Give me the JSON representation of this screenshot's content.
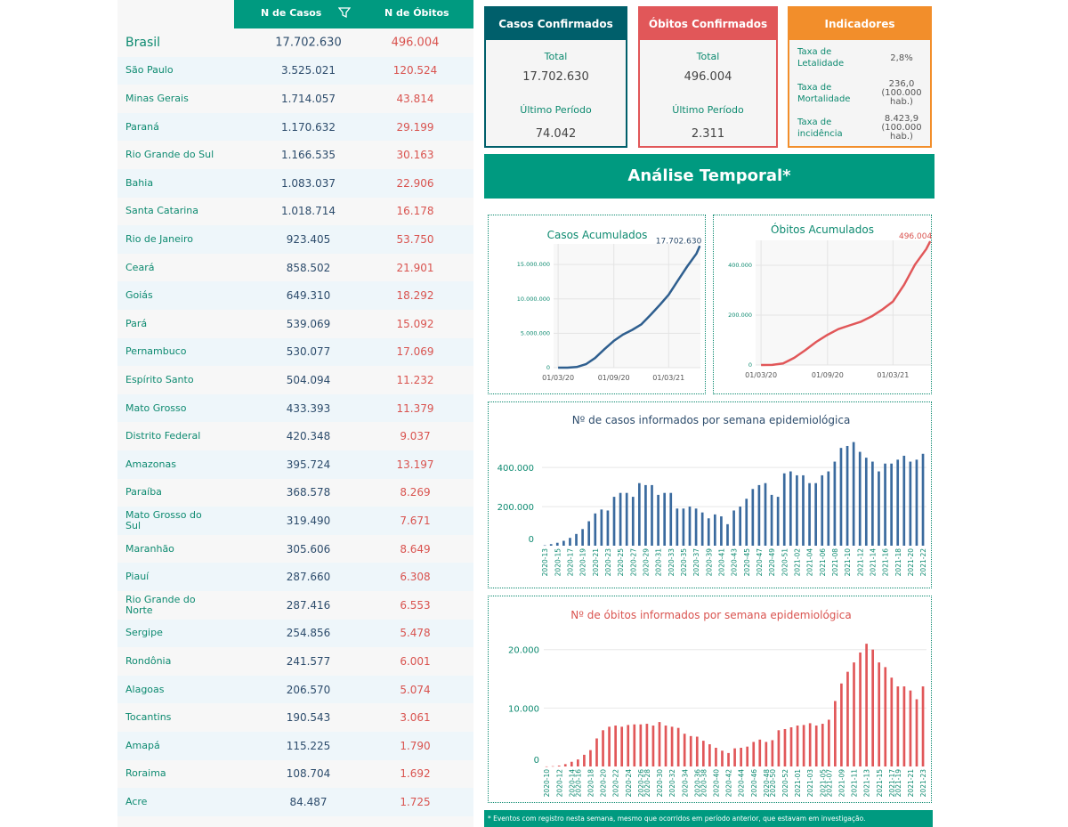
{
  "table": {
    "header": {
      "casos": "N de Casos",
      "obitos": "N de Óbitos"
    },
    "rows": [
      {
        "nome": "Brasil",
        "casos": "17.702.630",
        "obitos": "496.004"
      },
      {
        "nome": "São Paulo",
        "casos": "3.525.021",
        "obitos": "120.524"
      },
      {
        "nome": "Minas Gerais",
        "casos": "1.714.057",
        "obitos": "43.814"
      },
      {
        "nome": "Paraná",
        "casos": "1.170.632",
        "obitos": "29.199"
      },
      {
        "nome": "Rio Grande do Sul",
        "casos": "1.166.535",
        "obitos": "30.163"
      },
      {
        "nome": "Bahia",
        "casos": "1.083.037",
        "obitos": "22.906"
      },
      {
        "nome": "Santa Catarina",
        "casos": "1.018.714",
        "obitos": "16.178"
      },
      {
        "nome": "Rio de Janeiro",
        "casos": "923.405",
        "obitos": "53.750"
      },
      {
        "nome": "Ceará",
        "casos": "858.502",
        "obitos": "21.901"
      },
      {
        "nome": "Goiás",
        "casos": "649.310",
        "obitos": "18.292"
      },
      {
        "nome": "Pará",
        "casos": "539.069",
        "obitos": "15.092"
      },
      {
        "nome": "Pernambuco",
        "casos": "530.077",
        "obitos": "17.069"
      },
      {
        "nome": "Espírito Santo",
        "casos": "504.094",
        "obitos": "11.232"
      },
      {
        "nome": "Mato Grosso",
        "casos": "433.393",
        "obitos": "11.379"
      },
      {
        "nome": "Distrito Federal",
        "casos": "420.348",
        "obitos": "9.037"
      },
      {
        "nome": "Amazonas",
        "casos": "395.724",
        "obitos": "13.197"
      },
      {
        "nome": "Paraíba",
        "casos": "368.578",
        "obitos": "8.269"
      },
      {
        "nome": "Mato Grosso do Sul",
        "casos": "319.490",
        "obitos": "7.671"
      },
      {
        "nome": "Maranhão",
        "casos": "305.606",
        "obitos": "8.649"
      },
      {
        "nome": "Piauí",
        "casos": "287.660",
        "obitos": "6.308"
      },
      {
        "nome": "Rio Grande do Norte",
        "casos": "287.416",
        "obitos": "6.553"
      },
      {
        "nome": "Sergipe",
        "casos": "254.856",
        "obitos": "5.478"
      },
      {
        "nome": "Rondônia",
        "casos": "241.577",
        "obitos": "6.001"
      },
      {
        "nome": "Alagoas",
        "casos": "206.570",
        "obitos": "5.074"
      },
      {
        "nome": "Tocantins",
        "casos": "190.543",
        "obitos": "3.061"
      },
      {
        "nome": "Amapá",
        "casos": "115.225",
        "obitos": "1.790"
      },
      {
        "nome": "Roraima",
        "casos": "108.704",
        "obitos": "1.692"
      },
      {
        "nome": "Acre",
        "casos": "84.487",
        "obitos": "1.725"
      }
    ]
  },
  "cards": {
    "casos": {
      "title": "Casos Confirmados",
      "total_label": "Total",
      "total": "17.702.630",
      "periodo_label": "Último Período",
      "periodo": "74.042"
    },
    "obitos": {
      "title": "Óbitos Confirmados",
      "total_label": "Total",
      "total": "496.004",
      "periodo_label": "Último Período",
      "periodo": "2.311"
    },
    "indicadores": {
      "title": "Indicadores",
      "items": [
        {
          "label": "Taxa de Letalidade",
          "value": "2,8%"
        },
        {
          "label": "Taxa de Mortalidade",
          "value": "236,0 (100.000 hab.)"
        },
        {
          "label": "Taxa de incidência",
          "value": "8.423,9 (100.000 hab.)"
        }
      ]
    }
  },
  "banner": "Análise Temporal*",
  "footnote": "* Eventos com registro nesta semana, mesmo que ocorridos em período anterior, que estavam em investigação.",
  "colors": {
    "teal": "#009a80",
    "navy": "#005f6b",
    "red": "#e15759",
    "orange": "#f28e2b",
    "series_casos": "#3a6a9e",
    "series_obitos": "#e15759"
  },
  "chart_data": [
    {
      "type": "line",
      "title": "Casos Acumulados",
      "x_tick_labels": [
        "01/03/20",
        "01/09/20",
        "01/03/21"
      ],
      "y_tick_labels": [
        "0",
        "5.000.000",
        "10.000.000",
        "15.000.000"
      ],
      "ylim": [
        0,
        18000000
      ],
      "end_label": "17.702.630",
      "series": [
        {
          "x": [
            "2020-03-01",
            "2020-04-01",
            "2020-05-01",
            "2020-06-01",
            "2020-07-01",
            "2020-08-01",
            "2020-09-01",
            "2020-10-01",
            "2020-11-01",
            "2020-12-01",
            "2021-01-01",
            "2021-02-01",
            "2021-03-01",
            "2021-04-01",
            "2021-05-01",
            "2021-06-01",
            "2021-06-12"
          ],
          "y": [
            2,
            6000,
            85000,
            500000,
            1400000,
            2700000,
            3900000,
            4800000,
            5500000,
            6300000,
            7700000,
            9200000,
            10600000,
            12700000,
            14700000,
            16600000,
            17702630
          ]
        }
      ]
    },
    {
      "type": "line",
      "title": "Óbitos Acumulados",
      "x_tick_labels": [
        "01/03/20",
        "01/09/20",
        "01/03/21"
      ],
      "y_tick_labels": [
        "0",
        "200.000",
        "400.000"
      ],
      "ylim": [
        0,
        500000
      ],
      "end_label": "496.004",
      "series": [
        {
          "x": [
            "2020-03-01",
            "2020-04-01",
            "2020-05-01",
            "2020-06-01",
            "2020-07-01",
            "2020-08-01",
            "2020-09-01",
            "2020-10-01",
            "2020-11-01",
            "2020-12-01",
            "2021-01-01",
            "2021-02-01",
            "2021-03-01",
            "2021-04-01",
            "2021-05-01",
            "2021-06-01",
            "2021-06-12"
          ],
          "y": [
            0,
            200,
            6000,
            29000,
            59000,
            93000,
            121000,
            144000,
            159000,
            173000,
            195000,
            224000,
            255000,
            322000,
            403000,
            465000,
            496004
          ]
        }
      ]
    },
    {
      "type": "bar",
      "title": "Nº de casos informados por semana epidemiológica",
      "y_tick_labels": [
        "0",
        "200.000",
        "400.000"
      ],
      "ylim": [
        0,
        560000
      ],
      "x_tick_labels": [
        "2020-13",
        "2020-15",
        "2020-17",
        "2020-19",
        "2020-21",
        "2020-23",
        "2020-25",
        "2020-27",
        "2020-29",
        "2020-31",
        "2020-33",
        "2020-35",
        "2020-37",
        "2020-39",
        "2020-41",
        "2020-43",
        "2020-45",
        "2020-47",
        "2020-49",
        "2020-51",
        "2021-02",
        "2021-04",
        "2021-06",
        "2021-08",
        "2021-10",
        "2021-12",
        "2021-14",
        "2021-16",
        "2021-18",
        "2021-20",
        "2021-22"
      ],
      "values": [
        2000,
        8000,
        15000,
        25000,
        40000,
        60000,
        85000,
        125000,
        165000,
        185000,
        180000,
        250000,
        270000,
        270000,
        250000,
        320000,
        310000,
        310000,
        260000,
        270000,
        270000,
        190000,
        190000,
        200000,
        190000,
        170000,
        140000,
        160000,
        150000,
        110000,
        180000,
        200000,
        240000,
        290000,
        310000,
        320000,
        260000,
        250000,
        370000,
        380000,
        360000,
        360000,
        320000,
        320000,
        360000,
        380000,
        430000,
        500000,
        510000,
        530000,
        480000,
        450000,
        430000,
        380000,
        420000,
        420000,
        440000,
        460000,
        430000,
        440000,
        470000
      ]
    },
    {
      "type": "bar",
      "title": "Nº de óbitos informados por semana epidemiológica",
      "y_tick_labels": [
        "0",
        "10.000",
        "20.000"
      ],
      "ylim": [
        0,
        23000
      ],
      "x_tick_labels": [
        "2020-10",
        "2020-12",
        "2020-14",
        "2020-16",
        "2020-18",
        "2020-20",
        "2020-22",
        "2020-24",
        "2020-26",
        "2020-28",
        "2020-30",
        "2020-32",
        "2020-34",
        "2020-36",
        "2020-38",
        "2020-40",
        "2020-42",
        "2020-44",
        "2020-46",
        "2020-48",
        "2020-50",
        "2020-52",
        "2021-01",
        "2021-03",
        "2021-05",
        "2021-07",
        "2021-09",
        "2021-11",
        "2021-13",
        "2021-15",
        "2021-17",
        "2021-19",
        "2021-21",
        "2021-23"
      ],
      "values": [
        10,
        50,
        150,
        400,
        800,
        1200,
        2000,
        2800,
        4800,
        6200,
        6800,
        7000,
        6800,
        7100,
        7200,
        7200,
        7300,
        7000,
        7600,
        7000,
        6800,
        6600,
        5600,
        5200,
        5100,
        4400,
        3800,
        3200,
        2700,
        2300,
        3100,
        3200,
        3400,
        4200,
        4600,
        4200,
        4500,
        6200,
        6400,
        6700,
        7000,
        7100,
        7400,
        7000,
        7300,
        8000,
        11200,
        14200,
        16200,
        17800,
        19500,
        21000,
        20000,
        17800,
        17000,
        15200,
        13700,
        13700,
        13000,
        11500,
        13700
      ]
    }
  ]
}
